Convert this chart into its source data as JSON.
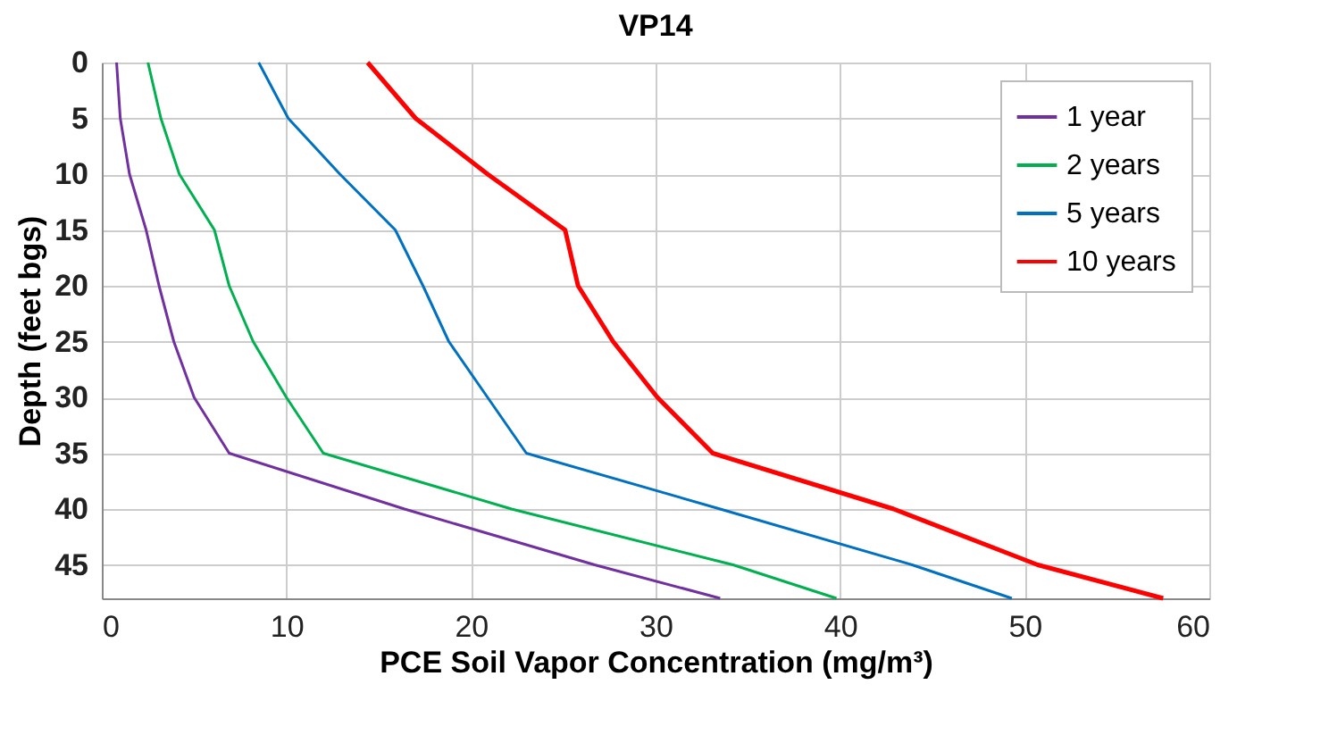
{
  "chart_data": {
    "type": "line",
    "title": "VP14",
    "xlabel": "PCE Soil Vapor Concentration (mg/m³)",
    "ylabel": "Depth (feet bgs)",
    "series": [
      {
        "name": "1 year",
        "color": "#7030a0",
        "x": [
          0.8,
          1.0,
          1.5,
          2.4,
          3.1,
          3.9,
          5.0,
          6.9,
          16.4,
          26.7,
          33.5
        ],
        "values": [
          0,
          5,
          10,
          15,
          20,
          25,
          30,
          35,
          40,
          45,
          48
        ]
      },
      {
        "name": "2 years",
        "color": "#00b050",
        "x": [
          2.5,
          3.2,
          4.2,
          6.1,
          6.9,
          8.2,
          10.0,
          12.0,
          22.2,
          34.2,
          39.8
        ],
        "values": [
          0,
          5,
          10,
          15,
          20,
          25,
          30,
          35,
          40,
          45,
          48
        ]
      },
      {
        "name": "5 years",
        "color": "#0070c0",
        "x": [
          8.5,
          10.1,
          12.9,
          15.9,
          17.4,
          18.8,
          20.9,
          23.0,
          33.5,
          43.9,
          49.3
        ],
        "values": [
          0,
          5,
          10,
          15,
          20,
          25,
          30,
          35,
          40,
          45,
          48
        ]
      },
      {
        "name": "10 years",
        "color": "#ff0000",
        "x": [
          14.4,
          17.0,
          20.9,
          25.1,
          25.8,
          27.7,
          30.1,
          33.1,
          42.9,
          50.7,
          57.5
        ],
        "values": [
          0,
          5,
          10,
          15,
          20,
          25,
          30,
          35,
          40,
          45,
          48
        ]
      }
    ],
    "xlim": [
      0,
      60
    ],
    "xticks": [
      0,
      10,
      20,
      30,
      40,
      50,
      60
    ],
    "ylim": [
      48,
      0
    ],
    "yticks": [
      0,
      5,
      10,
      15,
      20,
      25,
      30,
      35,
      40,
      45
    ],
    "grid": true,
    "legend": "top right",
    "line_style": "solid",
    "marker": "none"
  }
}
